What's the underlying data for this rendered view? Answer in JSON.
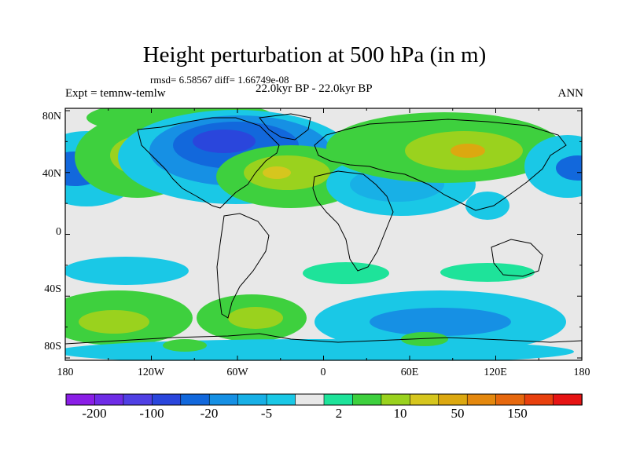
{
  "title": "Height perturbation at 500 hPa (in m)",
  "subtitle_stats": "rmsd= 6.58567 diff= 1.66749e-08",
  "experiment": "Expt = temnw-temlw",
  "period": "22.0kyr BP - 22.0kyr BP",
  "season": "ANN",
  "lat_labels": [
    "80N",
    "40N",
    "0",
    "40S",
    "80S"
  ],
  "lon_labels": [
    "180",
    "120W",
    "60W",
    "0",
    "60E",
    "120E",
    "180"
  ],
  "colorbar": {
    "colors": [
      "#8a1ee6",
      "#6e2ce6",
      "#5040e4",
      "#2a46dc",
      "#1268dc",
      "#1690e4",
      "#18b0e6",
      "#1ac8e6",
      "#e8e8e8",
      "#1ee39a",
      "#3ed03e",
      "#9ad21e",
      "#d6c61e",
      "#dca810",
      "#e4880e",
      "#e6680e",
      "#e8400e",
      "#e61414"
    ],
    "labels": [
      "-200",
      "-100",
      "-20",
      "-5",
      "2",
      "10",
      "50",
      "150"
    ]
  },
  "colors": {
    "neutral": "#e8e8e8",
    "cyan": "#1ac8e6",
    "light_blue": "#18b0e6",
    "mid_blue": "#1690e4",
    "blue": "#1268dc",
    "deep_blue": "#2a46dc",
    "teal_green": "#1ee39a",
    "green": "#3ed03e",
    "yellow_green": "#9ad21e",
    "yellow": "#d6c61e",
    "orange": "#dca810"
  }
}
